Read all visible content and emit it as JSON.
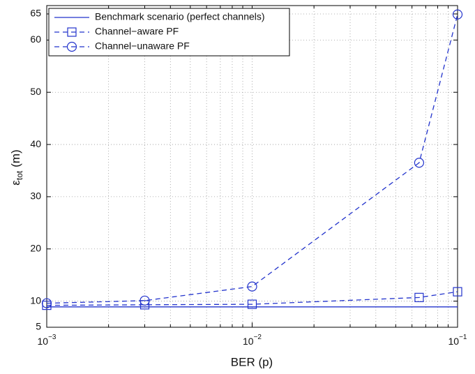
{
  "chart_data": {
    "type": "line",
    "xlabel": "BER (p)",
    "ylabel": {
      "symbol": "ε",
      "sub": "tot",
      "unit": "(m)"
    },
    "xscale": "log",
    "x": [
      0.001,
      0.003,
      0.01,
      0.065,
      0.1
    ],
    "series": [
      {
        "name": "Benchmark scenario (perfect channels)",
        "color": "#2233cc",
        "linestyle": "solid",
        "marker": "none",
        "values": [
          8.9,
          8.9,
          8.9,
          8.9,
          8.9
        ]
      },
      {
        "name": "Channel−aware PF",
        "color": "#2233cc",
        "linestyle": "dashed",
        "marker": "square",
        "values": [
          9.2,
          9.3,
          9.4,
          10.7,
          11.8
        ]
      },
      {
        "name": "Channel−unaware PF",
        "color": "#2233cc",
        "linestyle": "dashed",
        "marker": "circle",
        "values": [
          9.6,
          10.1,
          12.8,
          36.5,
          64.9
        ]
      }
    ],
    "xlim": [
      0.001,
      0.1
    ],
    "ylim": [
      5,
      66.6
    ],
    "xticks": [
      {
        "value": 0.001,
        "label": "10",
        "exponent": "−3"
      },
      {
        "value": 0.01,
        "label": "10",
        "exponent": "−2"
      },
      {
        "value": 0.1,
        "label": "10",
        "exponent": "−1"
      }
    ],
    "yticks": [
      5,
      10,
      20,
      30,
      40,
      50,
      60,
      65
    ],
    "grid": true,
    "x_minor_grid": true,
    "legend": "upper-left"
  }
}
